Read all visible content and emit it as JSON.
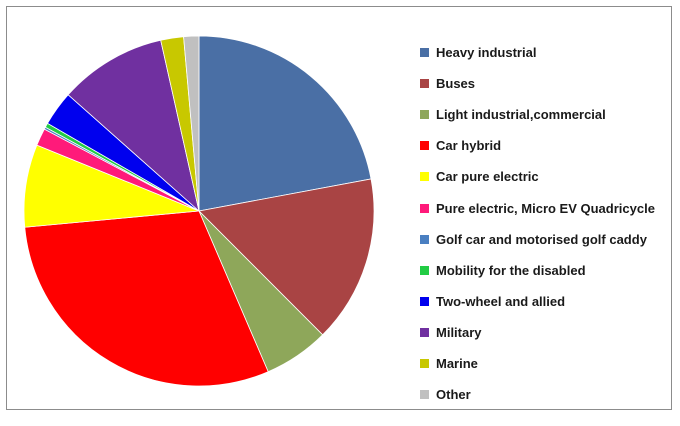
{
  "chart_data": {
    "type": "pie",
    "title": "",
    "legend_position": "right",
    "slices": [
      {
        "label": "Heavy industrial",
        "value": 22.0,
        "color": "#4a6fa5"
      },
      {
        "label": "Buses",
        "value": 15.4,
        "color": "#a94444"
      },
      {
        "label": "Light industrial,commercial",
        "value": 6.0,
        "color": "#8ea75a"
      },
      {
        "label": "Car hybrid",
        "value": 29.9,
        "color": "#ff0000"
      },
      {
        "label": "Car pure electric",
        "value": 7.6,
        "color": "#ffff00"
      },
      {
        "label": "Pure electric, Micro EV Quadricycle",
        "value": 1.6,
        "color": "#ff1a7a"
      },
      {
        "label": "Golf car and motorised golf caddy",
        "value": 0.2,
        "color": "#4a7fc1"
      },
      {
        "label": "Mobility for the disabled",
        "value": 0.4,
        "color": "#22cc44"
      },
      {
        "label": "Two-wheel and allied",
        "value": 3.2,
        "color": "#0000ee"
      },
      {
        "label": "Military",
        "value": 9.9,
        "color": "#7030a0"
      },
      {
        "label": "Marine",
        "value": 2.1,
        "color": "#c8c800"
      },
      {
        "label": "Other",
        "value": 1.4,
        "color": "#c0c0c0"
      }
    ]
  }
}
